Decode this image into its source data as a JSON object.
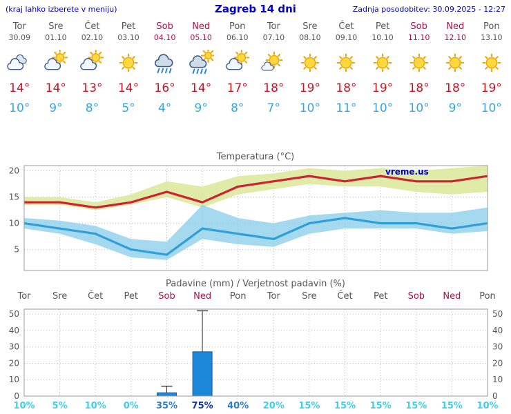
{
  "header": {
    "note": "(kraj lahko izberete v meniju)",
    "title": "Zagreb 14 dni",
    "updated": "Zadnja posodobitev: 30.09.2025 - 12:27"
  },
  "watermark": "vreme.us",
  "colors": {
    "header_blue": "#0000cc",
    "weekend": "#aa1144",
    "weekday": "#555555",
    "tmax": "#cc1122",
    "tmin": "#3aa6dd",
    "line_max": "#cc2233",
    "line_min": "#2f9fd8",
    "band_max": "#d9e897",
    "band_min": "#8fd0ec",
    "bar_fill": "#1e88d8",
    "bar_stroke": "#0d5c9e",
    "pop_low": "#45cde8",
    "pop_mid": "#2b7fc2",
    "pop_high": "#1133aa",
    "grid": "#bbbbbb",
    "frame": "#999999"
  },
  "days": [
    {
      "name": "Tor",
      "date": "30.09",
      "weekend": false,
      "icon": "cloudy",
      "tmax": "14°",
      "tmin": "10°"
    },
    {
      "name": "Sre",
      "date": "01.10",
      "weekend": false,
      "icon": "partly",
      "tmax": "14°",
      "tmin": "9°"
    },
    {
      "name": "Čet",
      "date": "02.10",
      "weekend": false,
      "icon": "partly",
      "tmax": "13°",
      "tmin": "8°"
    },
    {
      "name": "Pet",
      "date": "03.10",
      "weekend": false,
      "icon": "sunny",
      "tmax": "14°",
      "tmin": "5°"
    },
    {
      "name": "Sob",
      "date": "04.10",
      "weekend": true,
      "icon": "rain",
      "tmax": "16°",
      "tmin": "4°"
    },
    {
      "name": "Ned",
      "date": "05.10",
      "weekend": true,
      "icon": "rain-sun",
      "tmax": "14°",
      "tmin": "9°"
    },
    {
      "name": "Pon",
      "date": "06.10",
      "weekend": false,
      "icon": "partly",
      "tmax": "17°",
      "tmin": "8°"
    },
    {
      "name": "Tor",
      "date": "07.10",
      "weekend": false,
      "icon": "mostly-sunny",
      "tmax": "18°",
      "tmin": "7°"
    },
    {
      "name": "Sre",
      "date": "08.10",
      "weekend": false,
      "icon": "sunny",
      "tmax": "19°",
      "tmin": "10°"
    },
    {
      "name": "Čet",
      "date": "09.10",
      "weekend": false,
      "icon": "sunny",
      "tmax": "18°",
      "tmin": "11°"
    },
    {
      "name": "Pet",
      "date": "10.10",
      "weekend": false,
      "icon": "sunny",
      "tmax": "19°",
      "tmin": "10°"
    },
    {
      "name": "Sob",
      "date": "11.10",
      "weekend": true,
      "icon": "sunny",
      "tmax": "18°",
      "tmin": "10°"
    },
    {
      "name": "Ned",
      "date": "12.10",
      "weekend": true,
      "icon": "sunny",
      "tmax": "18°",
      "tmin": "9°"
    },
    {
      "name": "Pon",
      "date": "13.10",
      "weekend": false,
      "icon": "sunny",
      "tmax": "19°",
      "tmin": "10°"
    }
  ],
  "chart_data": [
    {
      "type": "line",
      "title": "Temperatura (°C)",
      "x_labels": [
        "Tor 30.09",
        "Sre 01.10",
        "Čet 02.10",
        "Pet 03.10",
        "Sob 04.10",
        "Ned 05.10",
        "Pon 06.10",
        "Tor 07.10",
        "Sre 08.10",
        "Čet 09.10",
        "Pet 10.10",
        "Sob 11.10",
        "Ned 12.10",
        "Pon 13.10"
      ],
      "ylim": [
        1,
        21
      ],
      "yticks": [
        5,
        10,
        15,
        20
      ],
      "grid": true,
      "series": [
        {
          "name": "max_temp",
          "values": [
            14,
            14,
            13,
            14,
            16,
            14,
            17,
            18,
            19,
            18,
            19,
            18,
            18,
            19
          ]
        },
        {
          "name": "min_temp",
          "values": [
            10,
            9,
            8,
            5,
            4,
            9,
            8,
            7,
            10,
            11,
            10,
            10,
            9,
            10
          ]
        },
        {
          "name": "max_band_upper",
          "values": [
            15,
            15,
            14,
            15.5,
            18,
            17,
            19,
            19.5,
            20.5,
            20,
            20.5,
            20,
            20.5,
            21
          ]
        },
        {
          "name": "max_band_lower",
          "values": [
            13.5,
            13.5,
            12.5,
            13.5,
            15,
            13,
            15.5,
            16.5,
            17.5,
            17,
            17,
            16,
            15.5,
            16
          ]
        },
        {
          "name": "min_band_upper",
          "values": [
            11,
            10.5,
            9.5,
            7,
            6.5,
            13.5,
            11,
            10,
            11.5,
            12,
            12.5,
            12,
            12,
            13
          ]
        },
        {
          "name": "min_band_lower",
          "values": [
            9,
            8,
            6,
            3.5,
            3,
            7,
            6,
            5.5,
            8,
            9,
            9,
            9,
            8,
            8.5
          ]
        }
      ]
    },
    {
      "type": "bar",
      "title": "Padavine (mm) / Verjetnost padavin (%)",
      "categories": [
        "Tor",
        "Sre",
        "Čet",
        "Pet",
        "Sob",
        "Ned",
        "Pon",
        "Tor",
        "Sre",
        "Čet",
        "Pet",
        "Sob",
        "Ned",
        "Pon"
      ],
      "weekend_flags": [
        false,
        false,
        false,
        false,
        true,
        true,
        false,
        false,
        false,
        false,
        false,
        true,
        true,
        false
      ],
      "values_mm": [
        0,
        0,
        0,
        0,
        2,
        27,
        0,
        0,
        0,
        0,
        0,
        0,
        0,
        0
      ],
      "whisker_max_mm": [
        0,
        0,
        0,
        0,
        6,
        52,
        0,
        0,
        0,
        0,
        0,
        0,
        0,
        0
      ],
      "pop_percent": [
        "10%",
        "5%",
        "10%",
        "0%",
        "35%",
        "75%",
        "40%",
        "20%",
        "15%",
        "15%",
        "15%",
        "15%",
        "15%",
        "10%"
      ],
      "ylim": [
        0,
        53
      ],
      "yticks": [
        0,
        10,
        20,
        30,
        40,
        50
      ],
      "grid": true
    }
  ]
}
